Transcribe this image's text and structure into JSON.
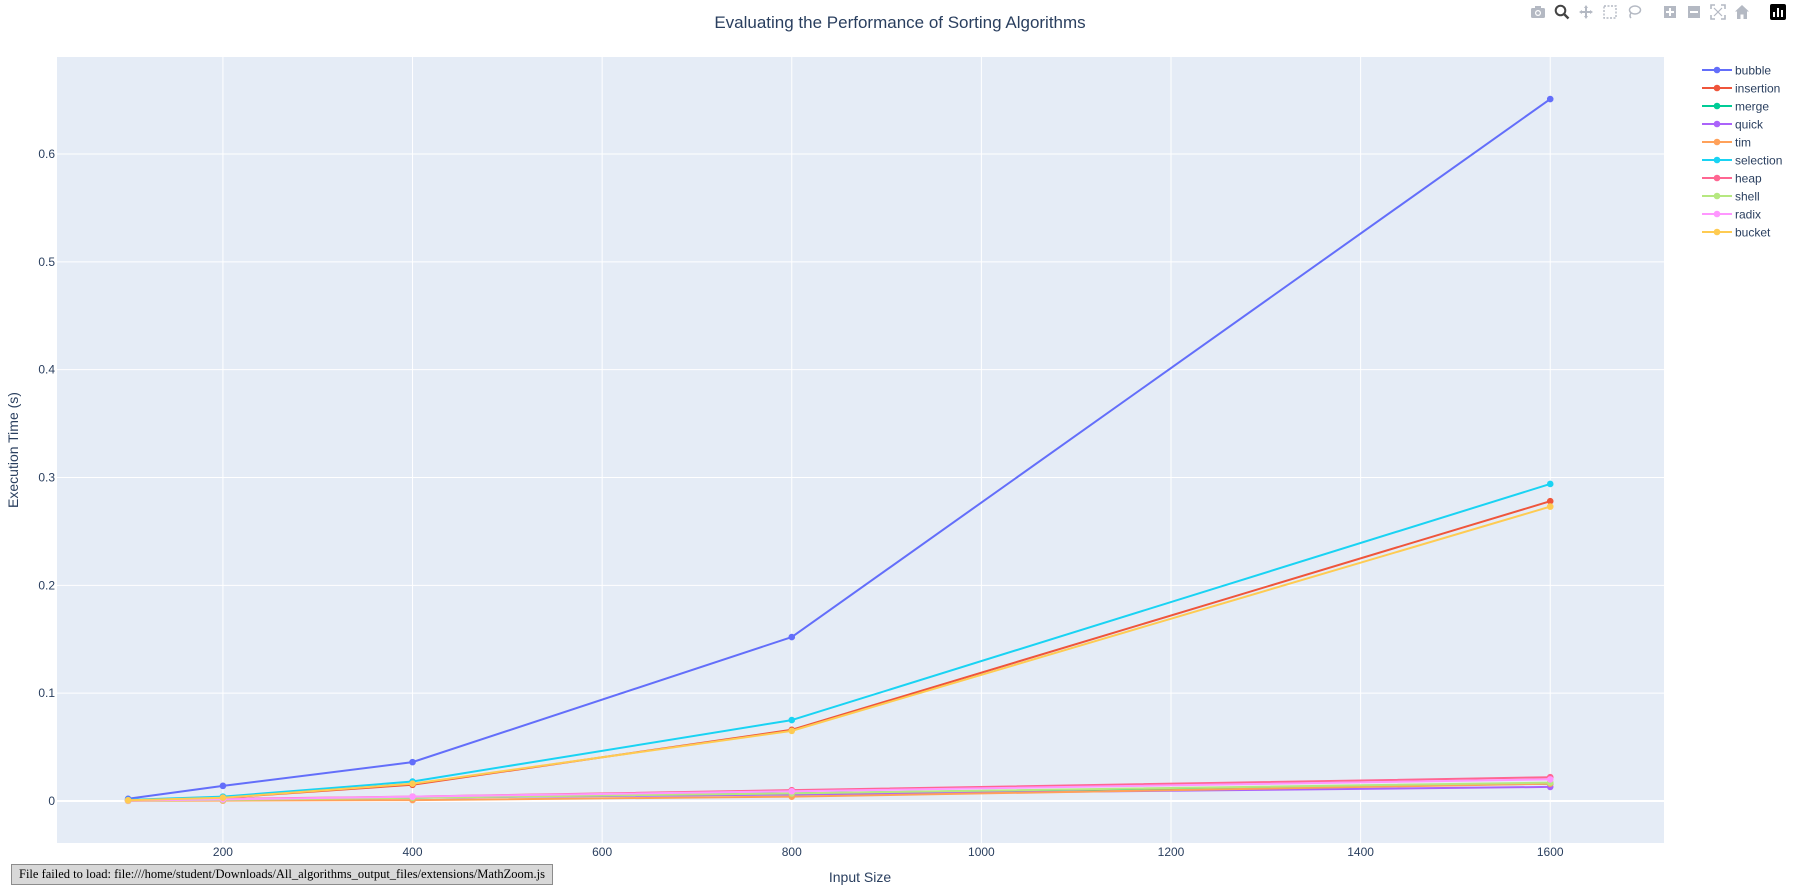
{
  "modebar": {
    "icons": [
      "camera-icon",
      "zoom-icon",
      "pan-icon",
      "box-select-icon",
      "lasso-icon",
      "zoom-in-icon",
      "zoom-out-icon",
      "autoscale-icon",
      "reset-axes-icon",
      "plotly-logo-icon"
    ]
  },
  "status_message": "File failed to load: file:///home/student/Downloads/All_algorithms_output_files/extensions/MathZoom.js",
  "colors": {
    "plot_background": "#e5ecf6",
    "grid": "#ffffff",
    "text": "#2a3f5f"
  },
  "chart_data": {
    "type": "line",
    "title": "Evaluating the Performance of Sorting Algorithms",
    "xlabel": "Input Size",
    "ylabel": "Execution Time (s)",
    "xlim": [
      0,
      1600
    ],
    "xaxis_range": [
      25,
      1720
    ],
    "yaxis_range": [
      -0.039,
      0.69
    ],
    "xticks": [
      200,
      400,
      600,
      800,
      1000,
      1200,
      1400,
      1600
    ],
    "yticks": [
      0,
      0.1,
      0.2,
      0.3,
      0.4,
      0.5,
      0.6
    ],
    "grid": true,
    "legend_position": "right",
    "x": [
      100,
      200,
      400,
      800,
      1600
    ],
    "series": [
      {
        "name": "bubble",
        "color": "#636efa",
        "values": [
          0.002,
          0.014,
          0.036,
          0.152,
          0.651
        ]
      },
      {
        "name": "insertion",
        "color": "#ef553b",
        "values": [
          0.0005,
          0.003,
          0.015,
          0.066,
          0.278
        ]
      },
      {
        "name": "merge",
        "color": "#00cc96",
        "values": [
          0.0004,
          0.001,
          0.003,
          0.007,
          0.016
        ]
      },
      {
        "name": "quick",
        "color": "#ab63fa",
        "values": [
          0.0003,
          0.001,
          0.003,
          0.006,
          0.013
        ]
      },
      {
        "name": "tim",
        "color": "#ffa15a",
        "values": [
          0.0001,
          0.0003,
          0.0008,
          0.004,
          0.016
        ]
      },
      {
        "name": "selection",
        "color": "#19d3f3",
        "values": [
          0.001,
          0.004,
          0.018,
          0.075,
          0.294
        ]
      },
      {
        "name": "heap",
        "color": "#ff6692",
        "values": [
          0.0005,
          0.002,
          0.004,
          0.01,
          0.022
        ]
      },
      {
        "name": "shell",
        "color": "#b6e880",
        "values": [
          0.0003,
          0.001,
          0.003,
          0.007,
          0.017
        ]
      },
      {
        "name": "radix",
        "color": "#ff97ff",
        "values": [
          0.0004,
          0.0015,
          0.004,
          0.009,
          0.02
        ]
      },
      {
        "name": "bucket",
        "color": "#fecb52",
        "values": [
          0.0006,
          0.003,
          0.016,
          0.065,
          0.273
        ]
      }
    ]
  }
}
